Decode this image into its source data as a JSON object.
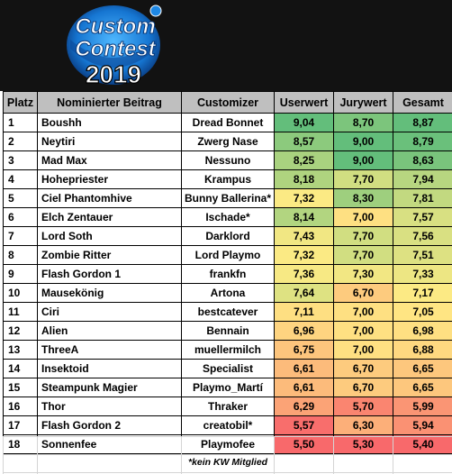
{
  "logo": {
    "line1": "Custom",
    "line2": "Contest",
    "line3": "2019"
  },
  "columns": [
    "Platz",
    "Nominierter Beitrag",
    "Customizer",
    "Userwert",
    "Jurywert",
    "Gesamt"
  ],
  "rows": [
    {
      "platz": "1",
      "beitrag": "Boushh",
      "customizer": "Dread Bonnet",
      "userwert": "9,04",
      "jurywert": "8,70",
      "gesamt": "8,87"
    },
    {
      "platz": "2",
      "beitrag": "Neytiri",
      "customizer": "Zwerg Nase",
      "userwert": "8,57",
      "jurywert": "9,00",
      "gesamt": "8,79"
    },
    {
      "platz": "3",
      "beitrag": "Mad Max",
      "customizer": "Nessuno",
      "userwert": "8,25",
      "jurywert": "9,00",
      "gesamt": "8,63"
    },
    {
      "platz": "4",
      "beitrag": "Hohepriester",
      "customizer": "Krampus",
      "userwert": "8,18",
      "jurywert": "7,70",
      "gesamt": "7,94"
    },
    {
      "platz": "5",
      "beitrag": "Ciel Phantomhive",
      "customizer": "Bunny Ballerina*",
      "userwert": "7,32",
      "jurywert": "8,30",
      "gesamt": "7,81"
    },
    {
      "platz": "6",
      "beitrag": "Elch Zentauer",
      "customizer": "Ischade*",
      "userwert": "8,14",
      "jurywert": "7,00",
      "gesamt": "7,57"
    },
    {
      "platz": "7",
      "beitrag": "Lord Soth",
      "customizer": "Darklord",
      "userwert": "7,43",
      "jurywert": "7,70",
      "gesamt": "7,56"
    },
    {
      "platz": "8",
      "beitrag": "Zombie Ritter",
      "customizer": "Lord Playmo",
      "userwert": "7,32",
      "jurywert": "7,70",
      "gesamt": "7,51"
    },
    {
      "platz": "9",
      "beitrag": "Flash Gordon 1",
      "customizer": "frankfn",
      "userwert": "7,36",
      "jurywert": "7,30",
      "gesamt": "7,33"
    },
    {
      "platz": "10",
      "beitrag": "Mausekönig",
      "customizer": "Artona",
      "userwert": "7,64",
      "jurywert": "6,70",
      "gesamt": "7,17"
    },
    {
      "platz": "11",
      "beitrag": "Ciri",
      "customizer": "bestcatever",
      "userwert": "7,11",
      "jurywert": "7,00",
      "gesamt": "7,05"
    },
    {
      "platz": "12",
      "beitrag": "Alien",
      "customizer": "Bennain",
      "userwert": "6,96",
      "jurywert": "7,00",
      "gesamt": "6,98"
    },
    {
      "platz": "13",
      "beitrag": "ThreeA",
      "customizer": "muellermilch",
      "userwert": "6,75",
      "jurywert": "7,00",
      "gesamt": "6,88"
    },
    {
      "platz": "14",
      "beitrag": "Insektoid",
      "customizer": "Specialist",
      "userwert": "6,61",
      "jurywert": "6,70",
      "gesamt": "6,65"
    },
    {
      "platz": "15",
      "beitrag": "Steampunk Magier",
      "customizer": "Playmo_Martí",
      "userwert": "6,61",
      "jurywert": "6,70",
      "gesamt": "6,65"
    },
    {
      "platz": "16",
      "beitrag": "Thor",
      "customizer": "Thraker",
      "userwert": "6,29",
      "jurywert": "5,70",
      "gesamt": "5,99"
    },
    {
      "platz": "17",
      "beitrag": "Flash Gordon 2",
      "customizer": "creatobil*",
      "userwert": "5,57",
      "jurywert": "6,30",
      "gesamt": "5,94"
    },
    {
      "platz": "18",
      "beitrag": "Sonnenfee",
      "customizer": "Playmofee",
      "userwert": "5,50",
      "jurywert": "5,30",
      "gesamt": "5,40"
    }
  ],
  "color_scale": {
    "low": "#f8696b",
    "mid": "#ffeb84",
    "high": "#63be7b"
  },
  "footnote": "*kein KW Mitglied"
}
